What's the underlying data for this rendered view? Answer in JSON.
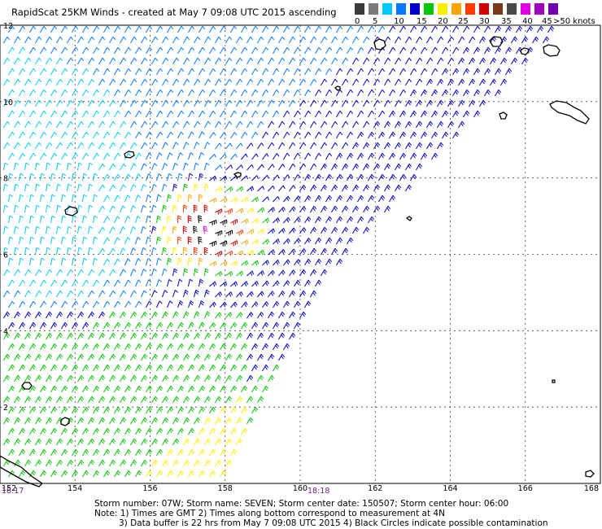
{
  "title": "RapidScat 25KM Winds - created at May  7 09:08 UTC 2015 ascending",
  "legend": {
    "colors": [
      "#3c3c3c",
      "#7a7a7a",
      "#00c8ff",
      "#0078ff",
      "#0000c8",
      "#00c800",
      "#ffee00",
      "#ffa500",
      "#ff3c00",
      "#d20000",
      "#7a3a1a",
      "#4a4a4a",
      "#e000e0",
      "#a000c0",
      "#7000b0"
    ],
    "labels": [
      "0",
      "5",
      "10",
      "15",
      "20",
      "25",
      "30",
      "35",
      "40",
      "45"
    ],
    "unit": ">50 knots"
  },
  "map": {
    "x_ticks": [
      "152",
      "154",
      "156",
      "158",
      "160",
      "162",
      "164",
      "166",
      "168"
    ],
    "y_ticks": [
      "12",
      "10",
      "8",
      "6",
      "4",
      "2"
    ],
    "x_range": [
      152,
      168
    ],
    "y_range": [
      0,
      12
    ]
  },
  "time_labels": {
    "left": "18:17",
    "center": "18:18"
  },
  "footer": {
    "line1": "Storm number: 07W;  Storm name: SEVEN;  Storm center date: 150507;  Storm center hour: 06:00",
    "line2": "Note: 1) Times are GMT  2) Times along bottom correspond to measurement at 4N",
    "line3": "3) Data buffer is 22 hrs from May  7 09:08 UTC 2015  4) Black Circles indicate possible contamination"
  }
}
